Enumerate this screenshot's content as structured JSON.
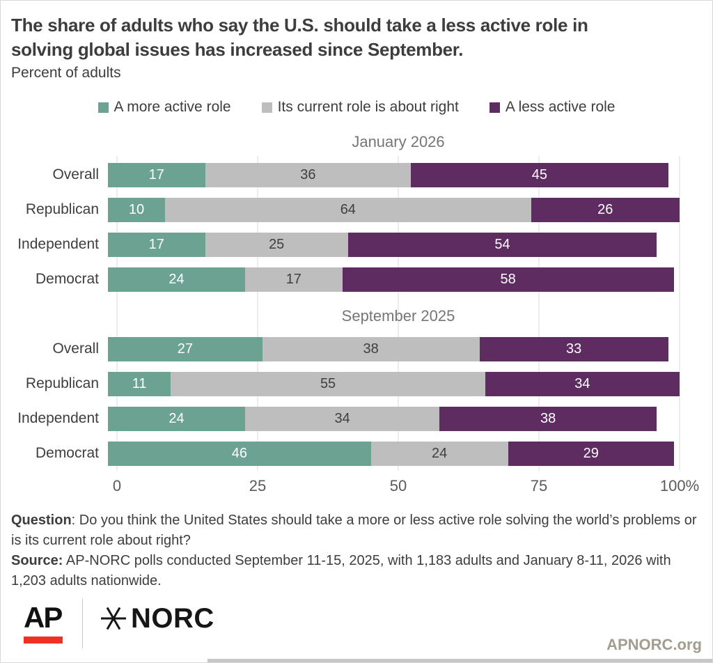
{
  "header": {
    "title_lines": [
      "The share of adults who say the U.S. should take a less active role in",
      "solving global issues has increased since September."
    ],
    "subtitle": "Percent of adults"
  },
  "colors": {
    "more_active_green": "#6ba291",
    "current_role_gray": "#bfbebe",
    "less_active_purple": "#5f2c62",
    "gridline": "#d9d9d9",
    "ap_red": "#ee3124",
    "value_text_light": "#ffffff",
    "value_text_dark": "#3f3f3f"
  },
  "chart_data": {
    "type": "bar",
    "stacked": true,
    "orientation": "horizontal",
    "xlim": [
      0,
      100
    ],
    "grid": true,
    "grid_positions": [
      0,
      25,
      50,
      75,
      100
    ],
    "xticks": [
      "0",
      "25",
      "50",
      "75",
      "100%"
    ],
    "legend_position": "top-center",
    "series": [
      {
        "name": "A more active role",
        "color": "#6ba291",
        "text_color": "#ffffff"
      },
      {
        "name": "Its current role is about right",
        "color": "#bfbebe",
        "text_color": "#3f3f3f"
      },
      {
        "name": "A less active role",
        "color": "#5f2c62",
        "text_color": "#ffffff"
      }
    ],
    "groups": [
      {
        "title": "January 2026",
        "rows": [
          {
            "label": "Overall",
            "values": [
              17,
              36,
              45
            ]
          },
          {
            "label": "Republican",
            "values": [
              10,
              64,
              26
            ]
          },
          {
            "label": "Independent",
            "values": [
              17,
              25,
              54
            ]
          },
          {
            "label": "Democrat",
            "values": [
              24,
              17,
              58
            ]
          }
        ]
      },
      {
        "title": "September 2025",
        "rows": [
          {
            "label": "Overall",
            "values": [
              27,
              38,
              33
            ]
          },
          {
            "label": "Republican",
            "values": [
              11,
              55,
              34
            ]
          },
          {
            "label": "Independent",
            "values": [
              24,
              34,
              38
            ]
          },
          {
            "label": "Democrat",
            "values": [
              46,
              24,
              29
            ]
          }
        ]
      }
    ]
  },
  "notes": {
    "question_label": "Question",
    "question_text": ": Do you think the United States should take a more or less active role solving the world’s problems or is its current role about right?",
    "source_label": "Source:",
    "source_text": " AP-NORC polls conducted September 11-15, 2025, with 1,183 adults and January 8-11, 2026 with 1,203 adults nationwide."
  },
  "footer": {
    "ap_logo": "AP",
    "norc_logo": "NORC",
    "site_link": "APNORC.org"
  }
}
